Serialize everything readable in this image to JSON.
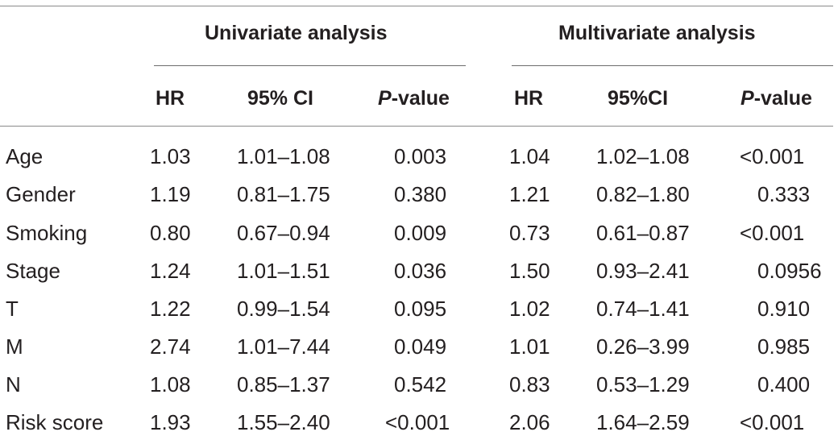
{
  "group_headers": {
    "univariate": "Univariate analysis",
    "multivariate": "Multivariate analysis"
  },
  "column_headers": {
    "uni_hr": "HR",
    "uni_ci": "95% CI",
    "uni_p_italic": "P",
    "uni_p_rest": "-value",
    "multi_hr": "HR",
    "multi_ci": "95%CI",
    "multi_p_italic": "P",
    "multi_p_rest": "-value"
  },
  "rows": [
    {
      "variable": "Age",
      "uni_hr": "1.03",
      "uni_ci": "1.01–1.08",
      "uni_p": "0.003",
      "multi_hr": "1.04",
      "multi_ci": "1.02–1.08",
      "multi_p": "<0.001"
    },
    {
      "variable": "Gender",
      "uni_hr": "1.19",
      "uni_ci": "0.81–1.75",
      "uni_p": "0.380",
      "multi_hr": "1.21",
      "multi_ci": "0.82–1.80",
      "multi_p": "0.333"
    },
    {
      "variable": "Smoking",
      "uni_hr": "0.80",
      "uni_ci": "0.67–0.94",
      "uni_p": "0.009",
      "multi_hr": "0.73",
      "multi_ci": "0.61–0.87",
      "multi_p": "<0.001"
    },
    {
      "variable": "Stage",
      "uni_hr": "1.24",
      "uni_ci": "1.01–1.51",
      "uni_p": "0.036",
      "multi_hr": "1.50",
      "multi_ci": "0.93–2.41",
      "multi_p": "0.0956"
    },
    {
      "variable": "T",
      "uni_hr": "1.22",
      "uni_ci": "0.99–1.54",
      "uni_p": "0.095",
      "multi_hr": "1.02",
      "multi_ci": "0.74–1.41",
      "multi_p": "0.910"
    },
    {
      "variable": "M",
      "uni_hr": "2.74",
      "uni_ci": "1.01–7.44",
      "uni_p": "0.049",
      "multi_hr": "1.01",
      "multi_ci": "0.26–3.99",
      "multi_p": "0.985"
    },
    {
      "variable": "N",
      "uni_hr": "1.08",
      "uni_ci": "0.85–1.37",
      "uni_p": "0.542",
      "multi_hr": "0.83",
      "multi_ci": "0.53–1.29",
      "multi_p": "0.400"
    },
    {
      "variable": "Risk score",
      "uni_hr": "1.93",
      "uni_ci": "1.55–2.40",
      "uni_p": "<0.001",
      "multi_hr": "2.06",
      "multi_ci": "1.64–2.59",
      "multi_p": "<0.001"
    }
  ]
}
